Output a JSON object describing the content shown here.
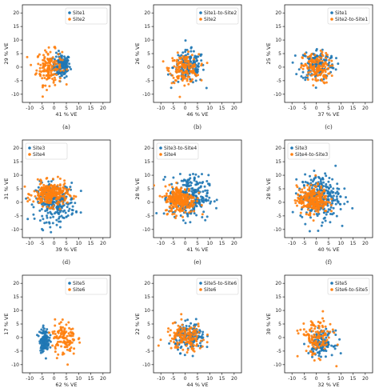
{
  "colors": {
    "site_a": "#1f77b4",
    "site_b": "#ff7f0e"
  },
  "chart_data": [
    {
      "type": "scatter",
      "caption": "(a)",
      "xlabel": "41 % VE",
      "ylabel": "29 % VE",
      "xlim": [
        -13,
        23
      ],
      "ylim": [
        -13,
        23
      ],
      "xticks": [
        -10,
        -5,
        0,
        5,
        10,
        15,
        20
      ],
      "yticks": [
        -10,
        -5,
        0,
        5,
        10,
        15,
        20
      ],
      "legend": "top-right",
      "series": [
        {
          "name": "Site1",
          "color": "#1f77b4",
          "center": [
            3,
            0.5
          ],
          "spread": [
            1.8,
            2.2
          ],
          "count": 150
        },
        {
          "name": "Site2",
          "color": "#ff7f0e",
          "center": [
            -2,
            0
          ],
          "spread": [
            2.6,
            3.2
          ],
          "count": 150
        }
      ]
    },
    {
      "type": "scatter",
      "caption": "(b)",
      "xlabel": "46 % VE",
      "ylabel": "26 % VE",
      "xlim": [
        -13,
        23
      ],
      "ylim": [
        -13,
        23
      ],
      "xticks": [
        -10,
        -5,
        0,
        5,
        10,
        15,
        20
      ],
      "yticks": [
        -10,
        -5,
        0,
        5,
        10,
        15,
        20
      ],
      "legend": "top-right",
      "series": [
        {
          "name": "Site1-to-Site2",
          "color": "#1f77b4",
          "center": [
            1.5,
            0
          ],
          "spread": [
            3.2,
            3.0
          ],
          "count": 150
        },
        {
          "name": "Site2",
          "color": "#ff7f0e",
          "center": [
            -0.5,
            -0.5
          ],
          "spread": [
            3.0,
            2.6
          ],
          "count": 150
        }
      ]
    },
    {
      "type": "scatter",
      "caption": "(c)",
      "xlabel": "37 % VE",
      "ylabel": "25 % VE",
      "xlim": [
        -13,
        23
      ],
      "ylim": [
        -13,
        23
      ],
      "xticks": [
        -10,
        -5,
        0,
        5,
        10,
        15,
        20
      ],
      "yticks": [
        -10,
        -5,
        0,
        5,
        10,
        15,
        20
      ],
      "legend": "top-right",
      "series": [
        {
          "name": "Site1",
          "color": "#1f77b4",
          "center": [
            0.5,
            1
          ],
          "spread": [
            3.5,
            3.0
          ],
          "count": 150
        },
        {
          "name": "Site2-to-Site1",
          "color": "#ff7f0e",
          "center": [
            0,
            -0.5
          ],
          "spread": [
            2.8,
            2.8
          ],
          "count": 150
        }
      ]
    },
    {
      "type": "scatter",
      "caption": "(d)",
      "xlabel": "39 % VE",
      "ylabel": "31 % VE",
      "xlim": [
        -13,
        23
      ],
      "ylim": [
        -13,
        23
      ],
      "xticks": [
        -10,
        -5,
        0,
        5,
        10,
        15,
        20
      ],
      "yticks": [
        -10,
        -5,
        0,
        5,
        10,
        15,
        20
      ],
      "legend": "top-left",
      "series": [
        {
          "name": "Site3",
          "color": "#1f77b4",
          "center": [
            0.5,
            0
          ],
          "spread": [
            4.0,
            3.5
          ],
          "count": 260
        },
        {
          "name": "Site4",
          "color": "#ff7f0e",
          "center": [
            -1.5,
            3
          ],
          "spread": [
            3.5,
            2.2
          ],
          "count": 260
        }
      ]
    },
    {
      "type": "scatter",
      "caption": "(e)",
      "xlabel": "41 % VE",
      "ylabel": "28 % VE",
      "xlim": [
        -13,
        23
      ],
      "ylim": [
        -13,
        23
      ],
      "xticks": [
        -10,
        -5,
        0,
        5,
        10,
        15,
        20
      ],
      "yticks": [
        -10,
        -5,
        0,
        5,
        10,
        15,
        20
      ],
      "legend": "top-left",
      "series": [
        {
          "name": "Site3-to-Site4",
          "color": "#1f77b4",
          "center": [
            1.5,
            2
          ],
          "spread": [
            4.0,
            4.0
          ],
          "count": 260
        },
        {
          "name": "Site4",
          "color": "#ff7f0e",
          "center": [
            -2,
            1
          ],
          "spread": [
            3.2,
            2.5
          ],
          "count": 260
        }
      ]
    },
    {
      "type": "scatter",
      "caption": "(f)",
      "xlabel": "40 % VE",
      "ylabel": "28 % VE",
      "xlim": [
        -13,
        23
      ],
      "ylim": [
        -13,
        23
      ],
      "xticks": [
        -10,
        -5,
        0,
        5,
        10,
        15,
        20
      ],
      "yticks": [
        -10,
        -5,
        0,
        5,
        10,
        15,
        20
      ],
      "legend": "top-left",
      "series": [
        {
          "name": "Site3",
          "color": "#1f77b4",
          "center": [
            1.5,
            2
          ],
          "spread": [
            4.0,
            4.2
          ],
          "count": 260
        },
        {
          "name": "Site4-to-Site3",
          "color": "#ff7f0e",
          "center": [
            -1.5,
            1
          ],
          "spread": [
            3.2,
            2.5
          ],
          "count": 260
        }
      ]
    },
    {
      "type": "scatter",
      "caption": "(g)",
      "xlabel": "62 % VE",
      "ylabel": "17 % VE",
      "xlim": [
        -13,
        23
      ],
      "ylim": [
        -13,
        23
      ],
      "xticks": [
        -10,
        -5,
        0,
        5,
        10,
        15,
        20
      ],
      "yticks": [
        -10,
        -5,
        0,
        5,
        10,
        15,
        20
      ],
      "legend": "top-right",
      "series": [
        {
          "name": "Site5",
          "color": "#1f77b4",
          "center": [
            -4,
            -1
          ],
          "spread": [
            1.0,
            2.2
          ],
          "count": 120
        },
        {
          "name": "Site6",
          "color": "#ff7f0e",
          "center": [
            4,
            0
          ],
          "spread": [
            2.5,
            3.2
          ],
          "count": 120
        }
      ]
    },
    {
      "type": "scatter",
      "caption": "(h)",
      "xlabel": "44 % VE",
      "ylabel": "22 % VE",
      "xlim": [
        -13,
        23
      ],
      "ylim": [
        -13,
        23
      ],
      "xticks": [
        -10,
        -5,
        0,
        5,
        10,
        15,
        20
      ],
      "yticks": [
        -10,
        -5,
        0,
        5,
        10,
        15,
        20
      ],
      "legend": "top-right",
      "series": [
        {
          "name": "Site5-to-Site6",
          "color": "#1f77b4",
          "center": [
            2,
            0
          ],
          "spread": [
            3.0,
            2.5
          ],
          "count": 150
        },
        {
          "name": "Site6",
          "color": "#ff7f0e",
          "center": [
            0,
            0
          ],
          "spread": [
            4.0,
            2.6
          ],
          "count": 150
        }
      ]
    },
    {
      "type": "scatter",
      "caption": "(i)",
      "xlabel": "32 % VE",
      "ylabel": "30 % VE",
      "xlim": [
        -13,
        23
      ],
      "ylim": [
        -13,
        23
      ],
      "xticks": [
        -10,
        -5,
        0,
        5,
        10,
        15,
        20
      ],
      "yticks": [
        -10,
        -5,
        0,
        5,
        10,
        15,
        20
      ],
      "legend": "top-right",
      "series": [
        {
          "name": "Site5",
          "color": "#1f77b4",
          "center": [
            2,
            -2
          ],
          "spread": [
            2.5,
            2.2
          ],
          "count": 130
        },
        {
          "name": "Site6-to-Site5",
          "color": "#ff7f0e",
          "center": [
            0,
            0
          ],
          "spread": [
            3.2,
            3.5
          ],
          "count": 130
        }
      ]
    }
  ]
}
